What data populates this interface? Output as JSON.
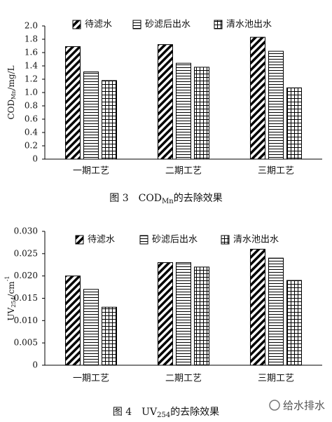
{
  "chart_data": [
    {
      "type": "bar",
      "y_label": {
        "main": "COD",
        "sub": "Mn",
        "unit": "/mg/L"
      },
      "caption": {
        "prefix": "图 3　COD",
        "sub": "Mn",
        "suffix": "的去除效果"
      },
      "categories": [
        "一期工艺",
        "二期工艺",
        "三期工艺"
      ],
      "series": [
        {
          "name": "待滤水",
          "color": "#000000",
          "pattern": "diagonal",
          "values": [
            1.69,
            1.72,
            1.83
          ]
        },
        {
          "name": "砂滤后出水",
          "color": "#000000",
          "pattern": "horizontal",
          "values": [
            1.31,
            1.44,
            1.62
          ]
        },
        {
          "name": "清水池出水",
          "color": "#000000",
          "pattern": "grid",
          "values": [
            1.18,
            1.38,
            1.07
          ]
        }
      ],
      "ylim": [
        0,
        2.0
      ],
      "yticks": [
        0,
        0.2,
        0.4,
        0.6,
        0.8,
        {
          "value": 1,
          "label": "1.0"
        },
        1.2,
        1.4,
        1.6,
        1.8,
        {
          "value": 2,
          "label": "2.0"
        }
      ],
      "legend": "top"
    },
    {
      "type": "bar",
      "y_label": {
        "main": "UV",
        "sub": "254",
        "unit": "/cm",
        "sup": "-1"
      },
      "caption": {
        "prefix": "图 4　UV",
        "sub": "254",
        "suffix": "的去除效果"
      },
      "categories": [
        "一期工艺",
        "二期工艺",
        "三期工艺"
      ],
      "series": [
        {
          "name": "待滤水",
          "color": "#000000",
          "pattern": "diagonal",
          "values": [
            0.02,
            0.023,
            0.026
          ]
        },
        {
          "name": "砂滤后出水",
          "color": "#000000",
          "pattern": "horizontal",
          "values": [
            0.017,
            0.023,
            0.024
          ]
        },
        {
          "name": "清水池出水",
          "color": "#000000",
          "pattern": "grid",
          "values": [
            0.013,
            0.022,
            0.019
          ]
        }
      ],
      "ylim": [
        0,
        0.03
      ],
      "yticks": [
        0,
        0.005,
        {
          "value": 0.01,
          "label": "0.010"
        },
        0.015,
        {
          "value": 0.02,
          "label": "0.020"
        },
        0.025,
        {
          "value": 0.03,
          "label": "0.030"
        }
      ],
      "legend": "top"
    }
  ],
  "watermark": "给水排水"
}
